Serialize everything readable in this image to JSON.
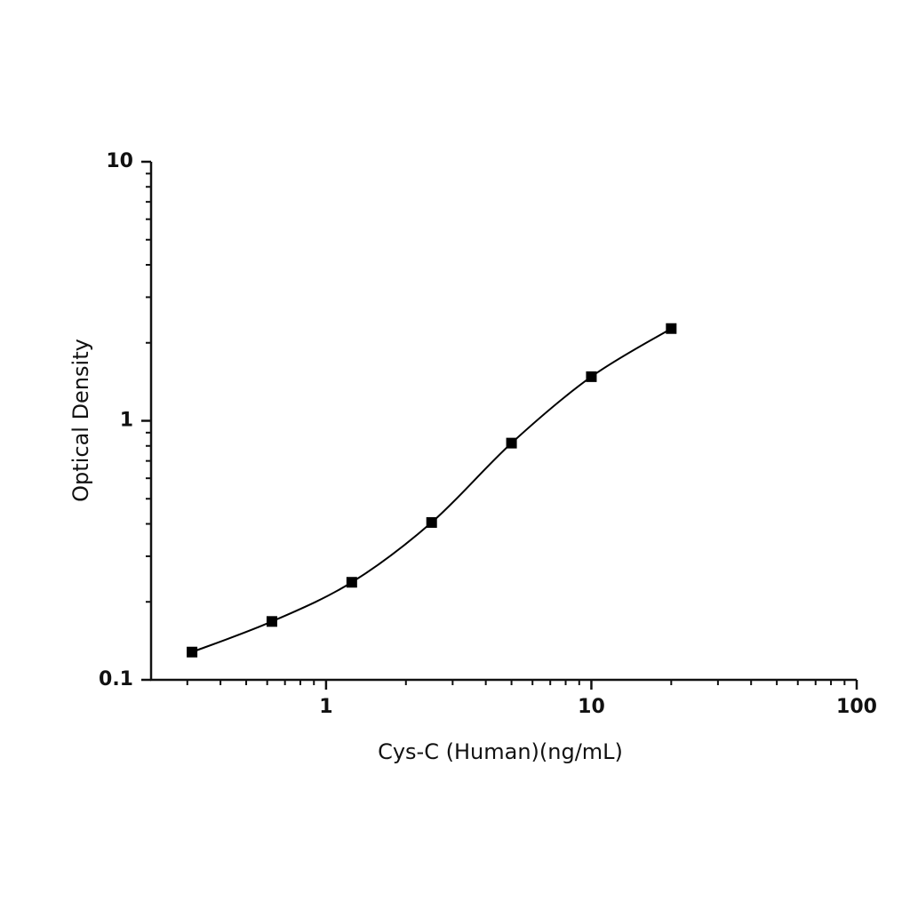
{
  "chart_data": {
    "type": "line",
    "smooth": true,
    "marker": "square",
    "x_label": "Cys-C (Human)(ng/mL)",
    "y_label": "Optical Density",
    "x": [
      0.3125,
      0.625,
      1.25,
      2.5,
      5,
      10,
      20
    ],
    "series": [
      {
        "color": "#000000",
        "values": [
          0.128,
          0.168,
          0.238,
          0.405,
          0.82,
          1.48,
          2.27
        ]
      }
    ],
    "xscale": "log",
    "yscale": "log",
    "xlim": [
      0.219,
      100
    ],
    "ylim": [
      0.1,
      10
    ],
    "xticks": [
      1,
      10,
      100
    ],
    "yticks": [
      0.1,
      1,
      10
    ],
    "minor_ticks": true
  }
}
